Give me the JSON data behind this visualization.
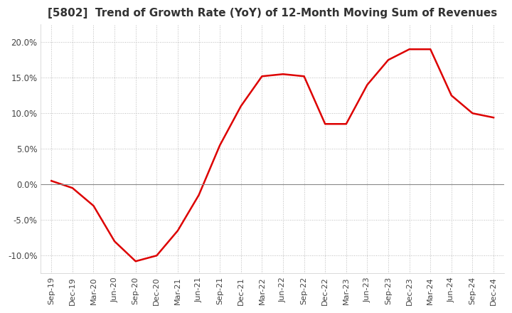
{
  "title": "[5802]  Trend of Growth Rate (YoY) of 12-Month Moving Sum of Revenues",
  "title_fontsize": 11,
  "line_color": "#dd0000",
  "line_width": 1.8,
  "background_color": "#ffffff",
  "grid_color": "#bbbbbb",
  "zero_line_color": "#888888",
  "ylim": [
    -0.125,
    0.225
  ],
  "yticks": [
    -0.1,
    -0.05,
    0.0,
    0.05,
    0.1,
    0.15,
    0.2
  ],
  "ytick_labels": [
    "-10.0%",
    "-5.0%",
    "0.0%",
    "5.0%",
    "10.0%",
    "15.0%",
    "20.0%"
  ],
  "x_labels": [
    "Sep-19",
    "Dec-19",
    "Mar-20",
    "Jun-20",
    "Sep-20",
    "Dec-20",
    "Mar-21",
    "Jun-21",
    "Sep-21",
    "Dec-21",
    "Mar-22",
    "Jun-22",
    "Sep-22",
    "Dec-22",
    "Mar-23",
    "Jun-23",
    "Sep-23",
    "Dec-23",
    "Mar-24",
    "Jun-24",
    "Sep-24",
    "Dec-24"
  ],
  "y_values": [
    0.005,
    -0.005,
    -0.03,
    -0.08,
    -0.108,
    -0.1,
    -0.065,
    -0.015,
    0.055,
    0.11,
    0.152,
    0.155,
    0.152,
    0.085,
    0.085,
    0.14,
    0.175,
    0.19,
    0.19,
    0.125,
    0.1,
    0.094
  ]
}
